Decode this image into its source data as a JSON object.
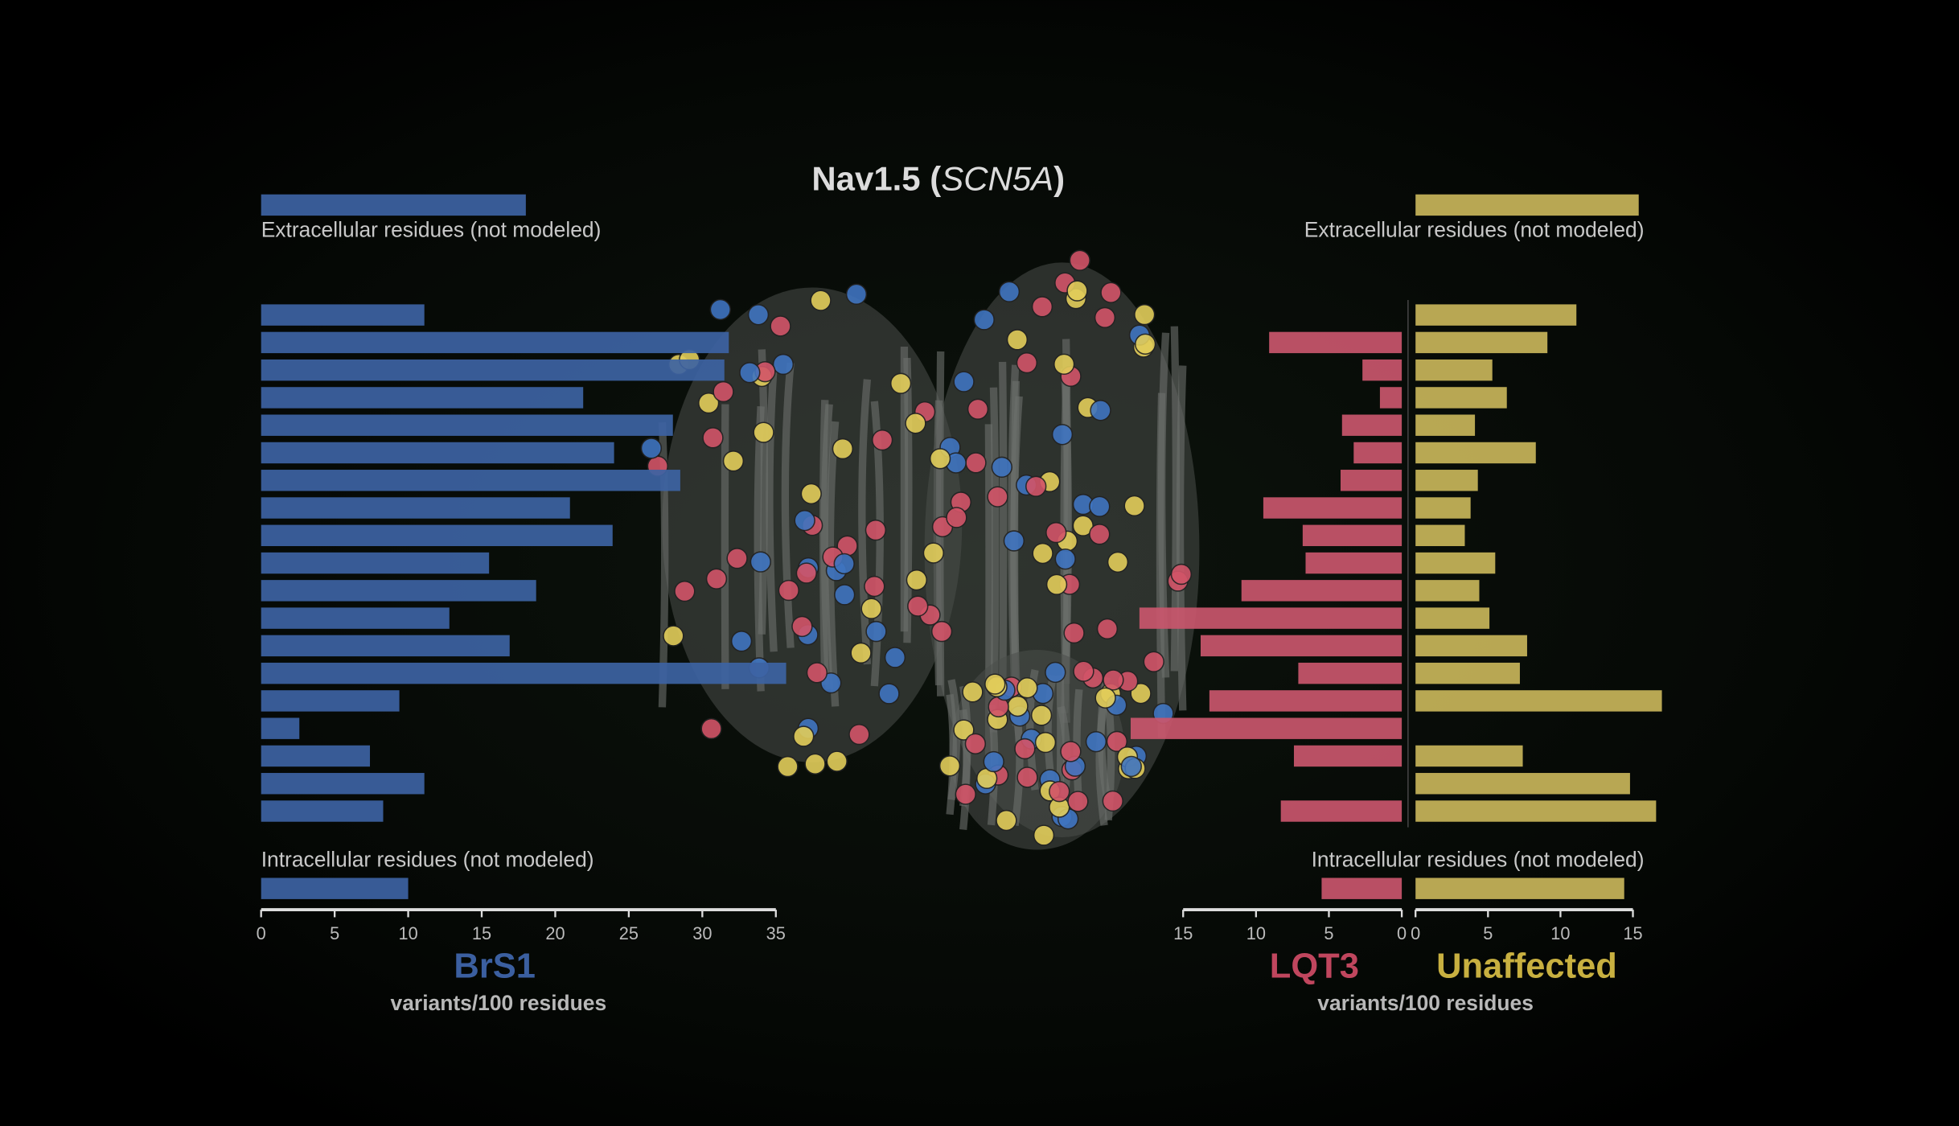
{
  "title": {
    "prefix": "Nav1.5 (",
    "gene": "SCN5A",
    "suffix": ")"
  },
  "chart_data": [
    {
      "type": "bar",
      "name": "BrS1",
      "color": "#3d63a3",
      "label_color": "#3b5fa0",
      "xlim": [
        0,
        35
      ],
      "xticks": [
        0,
        5,
        10,
        15,
        20,
        25,
        30,
        35
      ],
      "xlabel": "variants/100 residues",
      "extracellular_label": "Extracellular residues (not modeled)",
      "extracellular": 18,
      "intracellular_label": "Intracellular residues (not modeled)",
      "intracellular": 10,
      "values": [
        11.1,
        31.8,
        31.5,
        21.9,
        28,
        24.0,
        28.5,
        21.0,
        23.9,
        15.5,
        18.7,
        12.8,
        16.9,
        35.7,
        9.4,
        2.6,
        7.4,
        11.1,
        8.3
      ]
    },
    {
      "type": "bar",
      "name": "LQT3",
      "color": "#c9566c",
      "label_color": "#c0465e",
      "xlim": [
        0,
        15
      ],
      "xticks": [
        0,
        5,
        10,
        15
      ],
      "xlabel": "variants/100 residues",
      "intracellular": 5.5,
      "values": [
        0,
        9.1,
        2.7,
        1.5,
        4.1,
        3.3,
        4.2,
        9.5,
        6.8,
        6.6,
        11.0,
        18.0,
        13.8,
        7.1,
        13.2,
        18.6,
        7.4,
        0,
        8.3
      ]
    },
    {
      "type": "bar",
      "name": "Unaffected",
      "color": "#c8b55a",
      "label_color": "#c8b040",
      "xlim": [
        0,
        15
      ],
      "xticks": [
        0,
        5,
        10,
        15
      ],
      "extracellular_label": "Extracellular residues (not modeled)",
      "extracellular": 15.4,
      "intracellular_label": "Intracellular residues (not modeled)",
      "intracellular": 14.4,
      "values": [
        11.1,
        9.1,
        5.3,
        6.3,
        4.1,
        8.3,
        4.3,
        3.8,
        3.4,
        5.5,
        4.4,
        5.1,
        7.7,
        7.2,
        17.0,
        0,
        7.4,
        14.8,
        16.6
      ]
    }
  ]
}
